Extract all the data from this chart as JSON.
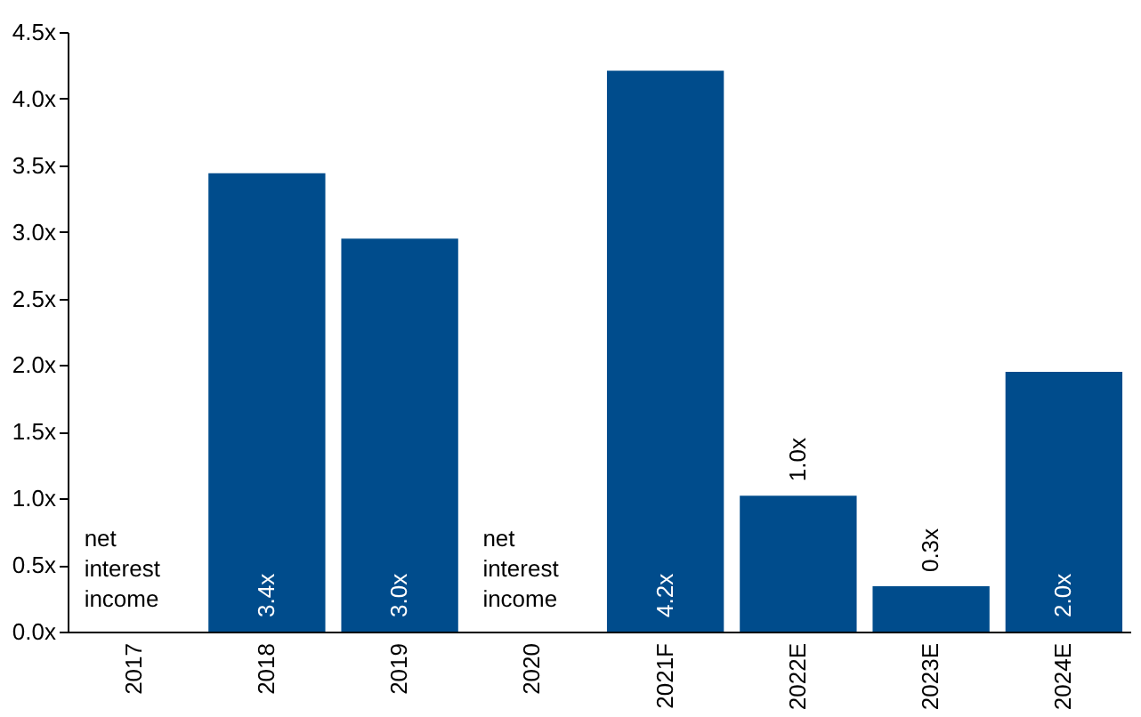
{
  "chart_data": {
    "type": "bar",
    "categories": [
      "2017",
      "2018",
      "2019",
      "2020",
      "2021F",
      "2022E",
      "2023E",
      "2024E"
    ],
    "values": [
      null,
      3.44,
      2.95,
      null,
      4.21,
      1.02,
      0.34,
      1.95
    ],
    "color": "#004c8c",
    "value_labels": [
      null,
      "3.4x",
      "3.0x",
      null,
      "4.2x",
      "1.0x",
      "0.3x",
      "2.0x"
    ],
    "ylim": [
      0,
      4.5
    ],
    "yticks": [
      {
        "value": 0,
        "label": "0.0x"
      },
      {
        "value": 0.5,
        "label": "0.5x"
      },
      {
        "value": 1,
        "label": "1.0x"
      },
      {
        "value": 1.5,
        "label": "1.5x"
      },
      {
        "value": 2,
        "label": "2.0x"
      },
      {
        "value": 2.5,
        "label": "2.5x"
      },
      {
        "value": 3,
        "label": "3.0x"
      },
      {
        "value": 3.5,
        "label": "3.5x"
      },
      {
        "value": 4,
        "label": "4.0x"
      },
      {
        "value": 4.5,
        "label": "4.5x"
      }
    ],
    "annotations": [
      "net interest income",
      "net interest income"
    ],
    "grid": false
  }
}
